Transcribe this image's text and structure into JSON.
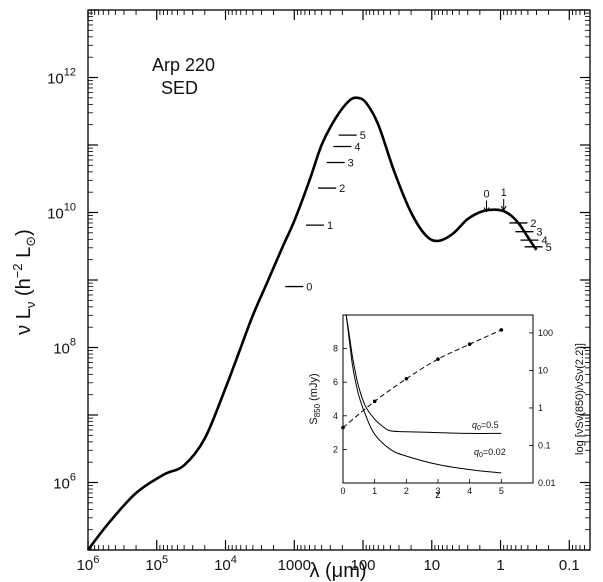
{
  "chart_data": [
    {
      "type": "line",
      "title_lines": [
        "Arp 220",
        "SED"
      ],
      "xlabel": "λ (μm)",
      "ylabel_parts": {
        "main": "ν L",
        "sub_nu": "ν",
        "unit_open": " (h",
        "unit_sup": "−2",
        "unit_L": " L",
        "unit_sub": "⊙",
        "unit_close": ")"
      },
      "x_scale": "log",
      "x_reversed": true,
      "xlim": [
        1000000,
        0.05
      ],
      "y_scale": "log",
      "ylim": [
        100000,
        10000000000000.0
      ],
      "x_ticks": [
        {
          "value": 1000000,
          "base": "10",
          "exp": "6"
        },
        {
          "value": 100000,
          "base": "10",
          "exp": "5"
        },
        {
          "value": 10000,
          "base": "10",
          "exp": "4"
        },
        {
          "value": 1000,
          "label": "1000"
        },
        {
          "value": 100,
          "label": "100"
        },
        {
          "value": 10,
          "label": "10"
        },
        {
          "value": 1,
          "label": "1"
        },
        {
          "value": 0.1,
          "label": "0.1"
        }
      ],
      "y_ticks": [
        {
          "value": 1000000,
          "base": "10",
          "exp": "6"
        },
        {
          "value": 100000000,
          "base": "10",
          "exp": "8"
        },
        {
          "value": 10000000000,
          "base": "10",
          "exp": "10"
        },
        {
          "value": 1000000000000,
          "base": "10",
          "exp": "12"
        }
      ],
      "series": [
        {
          "x": [
            1000000,
            500000,
            200000,
            80000,
            40000,
            20000,
            10000,
            6000,
            4000,
            2500,
            1500,
            1000,
            600,
            400,
            250,
            160,
            120,
            90,
            60,
            35,
            20,
            12,
            8,
            5,
            3,
            1.8,
            1.2,
            0.9,
            0.7,
            0.55,
            0.45,
            0.35,
            0.3
          ],
          "y": [
            100000,
            250000,
            700000,
            1300000,
            1800000,
            4500000,
            25000000,
            100000000,
            300000000,
            900000000,
            3000000000,
            7500000000,
            30000000000,
            100000000000,
            250000000000,
            450000000000,
            500000000000,
            420000000000,
            200000000000,
            40000000000,
            10000000000,
            4500000000,
            3800000000,
            4800000000,
            8000000000,
            10500000000,
            11000000000,
            10500000000,
            9000000000,
            7000000000,
            5200000000,
            3500000000,
            2800000000
          ]
        }
      ],
      "redshift_markers": [
        {
          "label": "0",
          "x": 1000,
          "y": 800000000
        },
        {
          "label": "1",
          "x": 500,
          "y": 6500000000
        },
        {
          "label": "2",
          "x": 333,
          "y": 23000000000
        },
        {
          "label": "3",
          "x": 250,
          "y": 55000000000
        },
        {
          "label": "4",
          "x": 200,
          "y": 95000000000
        },
        {
          "label": "5",
          "x": 167,
          "y": 140000000000
        },
        {
          "label": "0",
          "x": 1.6,
          "y": 10000000000
        },
        {
          "label": "1",
          "x": 0.9,
          "y": 10500000000
        },
        {
          "label": "2",
          "x": 0.55,
          "y": 7000000000
        },
        {
          "label": "3",
          "x": 0.45,
          "y": 5200000000
        },
        {
          "label": "4",
          "x": 0.38,
          "y": 3900000000
        },
        {
          "label": "5",
          "x": 0.33,
          "y": 3100000000
        }
      ]
    },
    {
      "type": "line",
      "xlabel": "z",
      "ylabel": "S850 (mJy)",
      "ylabel_main": "S",
      "ylabel_sub": "850",
      "ylabel_unit": " (mJy)",
      "y2label": "log [νSν(850)/νSν(2.2)]",
      "xlim": [
        0,
        6
      ],
      "ylim": [
        0,
        10
      ],
      "x_ticks": [
        "0",
        "1",
        "2",
        "3",
        "4",
        "5"
      ],
      "y_ticks": [
        "2",
        "4",
        "6",
        "8"
      ],
      "y2_ticks": [
        "100",
        "10",
        "1",
        "0.1",
        "0.01"
      ],
      "series": [
        {
          "label": "q0=0.5",
          "label_main": "q",
          "label_sub": "0",
          "label_value": "=0.5",
          "x": [
            0.1,
            0.2,
            0.3,
            0.4,
            0.5,
            0.7,
            1.0,
            1.3,
            1.5,
            2,
            3,
            4,
            5
          ],
          "y": [
            10,
            8.8,
            7.5,
            6.5,
            5.7,
            4.6,
            3.8,
            3.3,
            3.1,
            3.05,
            3.0,
            2.95,
            2.95
          ]
        },
        {
          "label": "q0=0.02",
          "label_main": "q",
          "label_sub": "0",
          "label_value": "=0.02",
          "x": [
            0.1,
            0.2,
            0.3,
            0.4,
            0.5,
            0.7,
            1.0,
            1.5,
            2,
            3,
            4,
            5
          ],
          "y": [
            10,
            8.5,
            7.0,
            6.0,
            5.2,
            4.1,
            2.9,
            2.0,
            1.6,
            1.1,
            0.8,
            0.6
          ]
        },
        {
          "style": "dashed",
          "x": [
            0,
            1,
            2,
            3,
            4,
            5
          ],
          "y2": [
            0.3,
            1.5,
            6,
            20,
            50,
            120
          ]
        }
      ],
      "points": [
        {
          "x": 0,
          "y2": 0.3
        },
        {
          "x": 1,
          "y2": 1.5
        },
        {
          "x": 2,
          "y2": 6
        },
        {
          "x": 3,
          "y2": 20
        },
        {
          "x": 4,
          "y2": 50
        },
        {
          "x": 5,
          "y2": 120
        }
      ]
    }
  ]
}
